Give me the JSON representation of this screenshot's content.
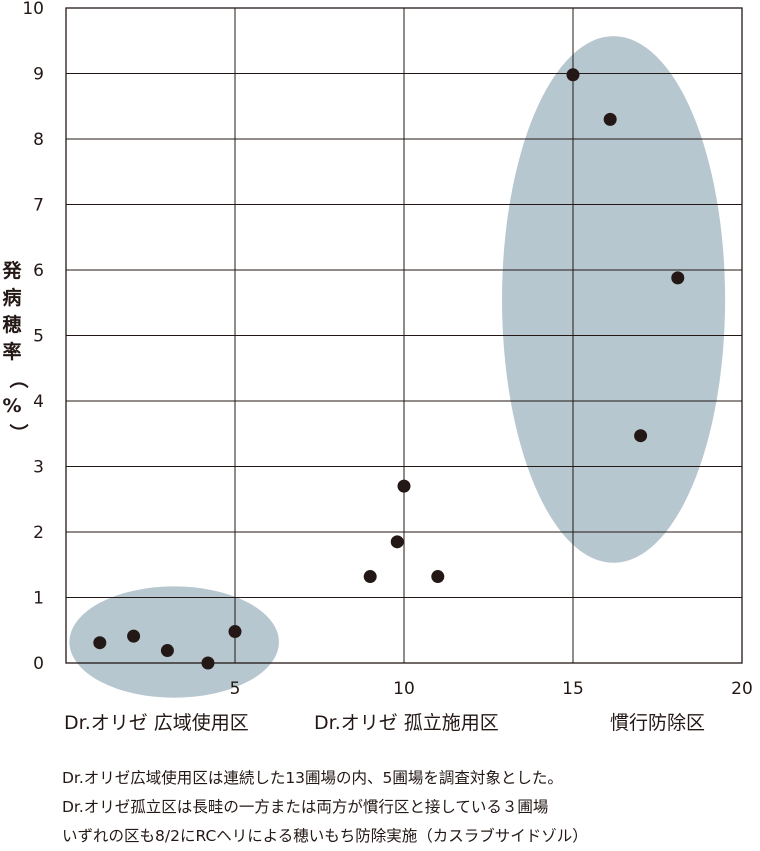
{
  "chart_data": {
    "type": "scatter",
    "title": "",
    "xlabel": "",
    "ylabel": "発病穂率（%）",
    "xlim": [
      0,
      20
    ],
    "ylim": [
      0,
      10
    ],
    "x_ticks": [
      5,
      10,
      15,
      20
    ],
    "y_ticks": [
      0,
      1,
      2,
      3,
      4,
      5,
      6,
      7,
      8,
      9,
      10
    ],
    "grid": true,
    "point_color": "#231815",
    "ellipse_color": "#b7c7cf",
    "points": [
      {
        "x": 1.0,
        "y": 0.31
      },
      {
        "x": 2.0,
        "y": 0.41
      },
      {
        "x": 3.0,
        "y": 0.19
      },
      {
        "x": 4.2,
        "y": 0.0
      },
      {
        "x": 5.0,
        "y": 0.48
      },
      {
        "x": 9.0,
        "y": 1.32
      },
      {
        "x": 9.8,
        "y": 1.85
      },
      {
        "x": 10.0,
        "y": 2.7
      },
      {
        "x": 11.0,
        "y": 1.32
      },
      {
        "x": 15.0,
        "y": 8.98
      },
      {
        "x": 16.1,
        "y": 8.3
      },
      {
        "x": 17.0,
        "y": 3.47
      },
      {
        "x": 18.1,
        "y": 5.88
      }
    ],
    "groups": [
      {
        "label": "Dr.オリゼ 広域使用区",
        "ellipse": {
          "cx": 3.2,
          "cy": 0.32,
          "rx": 3.1,
          "ry": 0.85
        }
      },
      {
        "label": "Dr.オリゼ 孤立施用区",
        "ellipse": null
      },
      {
        "label": "慣行防除区",
        "ellipse": {
          "cx": 16.2,
          "cy": 5.55,
          "rx": 3.3,
          "ry": 4.02
        }
      }
    ]
  },
  "notes": [
    "Dr.オリゼ広域使用区は連続した13圃場の内、5圃場を調査対象とした。",
    "Dr.オリゼ孤立区は長畦の一方または両方が慣行区と接している３圃場",
    "いずれの区も8/2にRCヘリによる穂いもち防除実施（カスラブサイドゾル）"
  ]
}
